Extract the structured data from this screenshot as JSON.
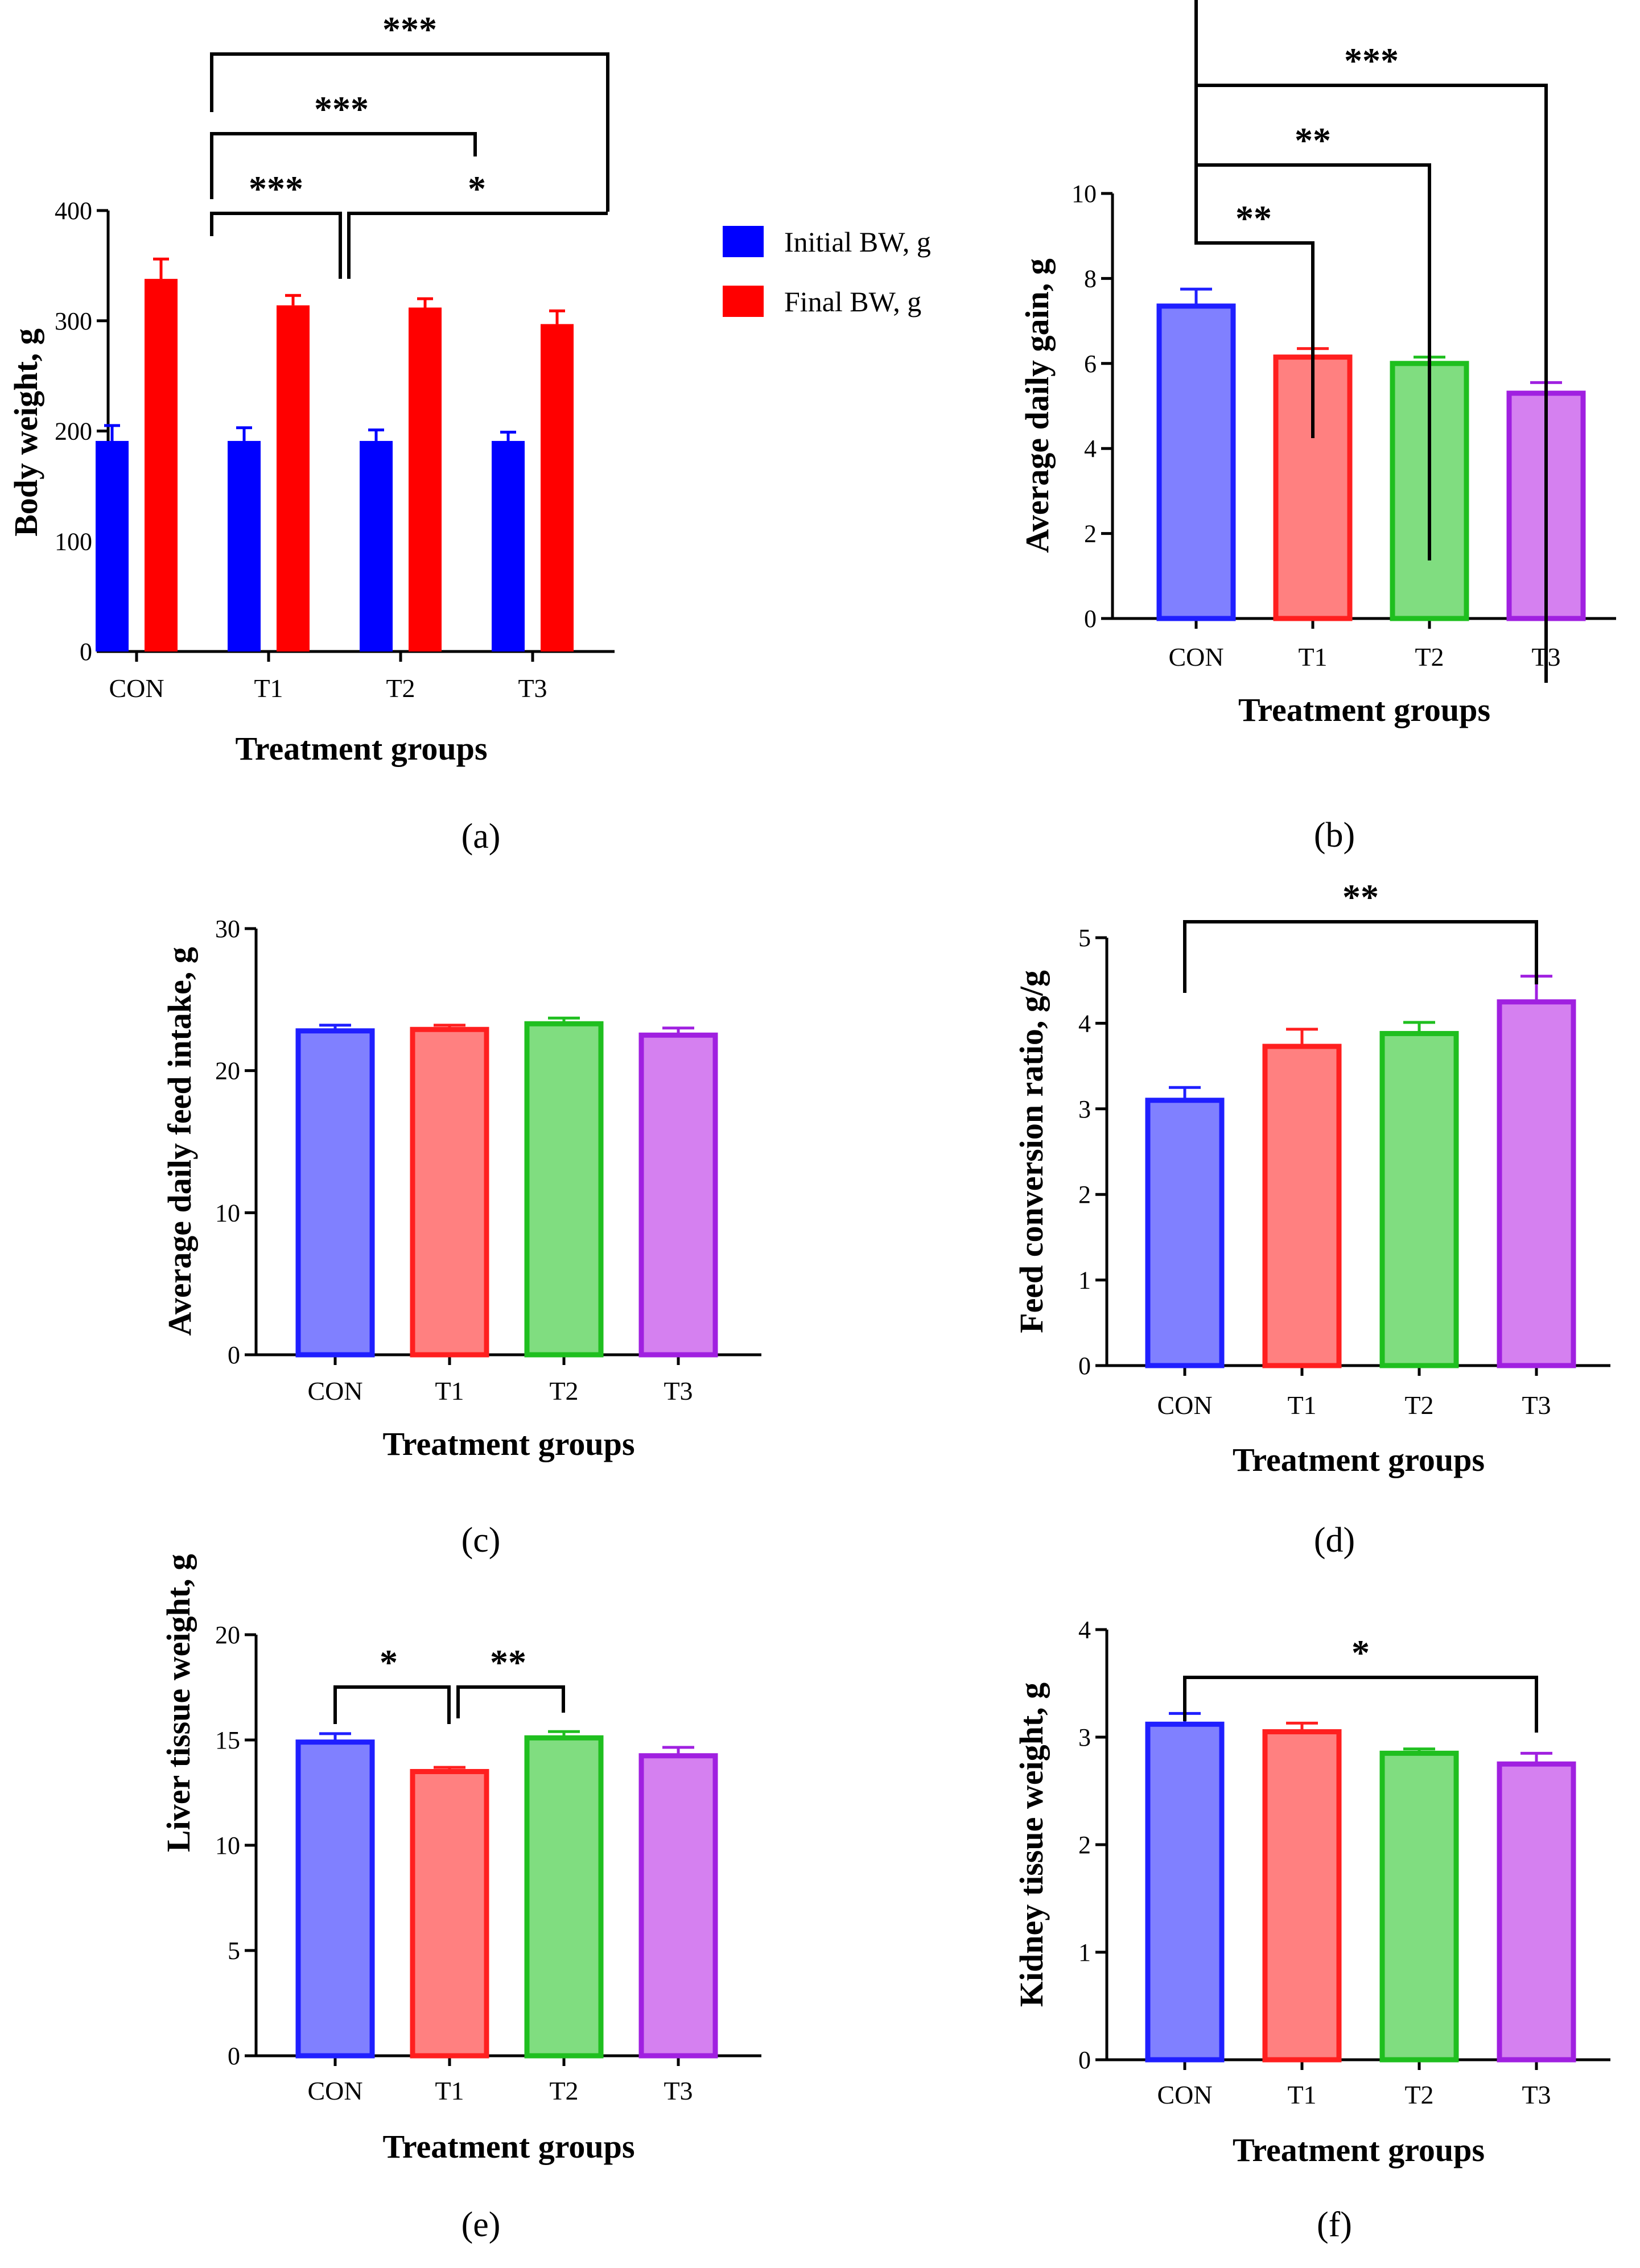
{
  "colors": {
    "axis": "#000000",
    "CON_fill": "#8080ff",
    "CON_stroke": "#1f1fff",
    "T1_fill": "#ff8080",
    "T1_stroke": "#ff1f1f",
    "T2_fill": "#80dd80",
    "T2_stroke": "#1fbf1f",
    "T3_fill": "#d580f0",
    "T3_stroke": "#a020e0",
    "initial": "#0000ff",
    "final": "#ff0000"
  },
  "chart_data": [
    {
      "id": "a",
      "type": "bar",
      "panel_label": "(a)",
      "categories": [
        "CON",
        "T1",
        "T2",
        "T3"
      ],
      "series": [
        {
          "name": "Initial BW, g",
          "values": [
            191,
            191,
            191,
            191
          ],
          "errors": [
            14,
            12,
            10,
            8
          ]
        },
        {
          "name": "Final BW, g",
          "values": [
            338,
            314,
            312,
            297
          ],
          "errors": [
            18,
            9,
            8,
            12
          ]
        }
      ],
      "xlabel": "Treatment groups",
      "ylabel": "Body weight, g",
      "ylim": [
        0,
        400
      ],
      "yticks": [
        "0",
        "100",
        "200",
        "300",
        "400"
      ],
      "legend_position": "right",
      "significance": [
        {
          "from": 0,
          "to": 3,
          "label": "***"
        },
        {
          "from": 0,
          "to": 2,
          "label": "***"
        },
        {
          "from": 0,
          "to": 1,
          "label": "***"
        },
        {
          "from": 1,
          "to": 3,
          "label": "*"
        }
      ]
    },
    {
      "id": "b",
      "type": "bar",
      "panel_label": "(b)",
      "categories": [
        "CON",
        "T1",
        "T2",
        "T3"
      ],
      "values": [
        7.35,
        6.15,
        6.0,
        5.3
      ],
      "errors": [
        0.4,
        0.2,
        0.15,
        0.25
      ],
      "xlabel": "Treatment groups",
      "ylabel": "Average daily gain, g",
      "ylim": [
        0,
        10
      ],
      "yticks": [
        "0",
        "2",
        "4",
        "6",
        "8",
        "10"
      ],
      "significance": [
        {
          "from": 0,
          "to": 3,
          "label": "***"
        },
        {
          "from": 0,
          "to": 2,
          "label": "**"
        },
        {
          "from": 0,
          "to": 1,
          "label": "**"
        }
      ]
    },
    {
      "id": "c",
      "type": "bar",
      "panel_label": "(c)",
      "categories": [
        "CON",
        "T1",
        "T2",
        "T3"
      ],
      "values": [
        22.8,
        22.9,
        23.3,
        22.5
      ],
      "errors": [
        0.4,
        0.3,
        0.4,
        0.5
      ],
      "xlabel": "Treatment groups",
      "ylabel": "Average daily feed intake, g",
      "ylim": [
        0,
        30
      ],
      "yticks": [
        "0",
        "10",
        "20",
        "30"
      ],
      "significance": []
    },
    {
      "id": "d",
      "type": "bar",
      "panel_label": "(d)",
      "categories": [
        "CON",
        "T1",
        "T2",
        "T3"
      ],
      "values": [
        3.1,
        3.73,
        3.88,
        4.25
      ],
      "errors": [
        0.15,
        0.2,
        0.13,
        0.3
      ],
      "xlabel": "Treatment groups",
      "ylabel": "Feed conversion ratio, g/g",
      "ylim": [
        0,
        5
      ],
      "yticks": [
        "0",
        "1",
        "2",
        "3",
        "4",
        "5"
      ],
      "significance": [
        {
          "from": 0,
          "to": 3,
          "label": "**"
        }
      ]
    },
    {
      "id": "e",
      "type": "bar",
      "panel_label": "(e)",
      "categories": [
        "CON",
        "T1",
        "T2",
        "T3"
      ],
      "values": [
        14.9,
        13.5,
        15.1,
        14.25
      ],
      "errors": [
        0.4,
        0.2,
        0.3,
        0.4
      ],
      "xlabel": "Treatment groups",
      "ylabel": "Liver tissue weight, g",
      "ylim": [
        0,
        20
      ],
      "yticks": [
        "0",
        "5",
        "10",
        "15",
        "20"
      ],
      "significance": [
        {
          "from": 0,
          "to": 1,
          "label": "*"
        },
        {
          "from": 1,
          "to": 2,
          "label": "**"
        }
      ]
    },
    {
      "id": "f",
      "type": "bar",
      "panel_label": "(f)",
      "categories": [
        "CON",
        "T1",
        "T2",
        "T3"
      ],
      "values": [
        3.12,
        3.05,
        2.85,
        2.75
      ],
      "errors": [
        0.1,
        0.08,
        0.04,
        0.1
      ],
      "xlabel": "Treatment groups",
      "ylabel": "Kidney tissue weight, g",
      "ylim": [
        0,
        4
      ],
      "yticks": [
        "0",
        "1",
        "2",
        "3",
        "4"
      ],
      "significance": [
        {
          "from": 0,
          "to": 3,
          "label": "*"
        }
      ]
    }
  ]
}
